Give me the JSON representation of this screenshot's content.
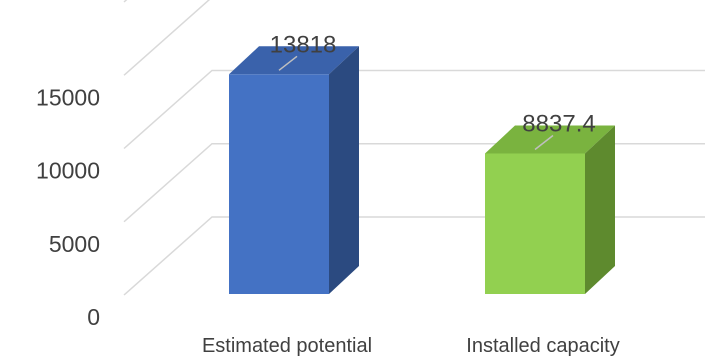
{
  "chart_data": {
    "type": "bar",
    "style": "3d-column",
    "categories": [
      "Estimated potential",
      "Installed capacity"
    ],
    "values": [
      13818,
      8837.4
    ],
    "value_labels": [
      "13818",
      "8837.4"
    ],
    "yticks": [
      "0",
      "5000",
      "10000",
      "15000"
    ],
    "ylim": [
      0,
      20000
    ],
    "grid": true,
    "legend": "none",
    "colors": [
      {
        "front": "#4472C4",
        "top": "#3A62AB",
        "side": "#2B4A80"
      },
      {
        "front": "#92D050",
        "top": "#7AB33F",
        "side": "#5E8A2E"
      }
    ],
    "grid_color": "#D9D9D9",
    "text_color": "#404040"
  }
}
